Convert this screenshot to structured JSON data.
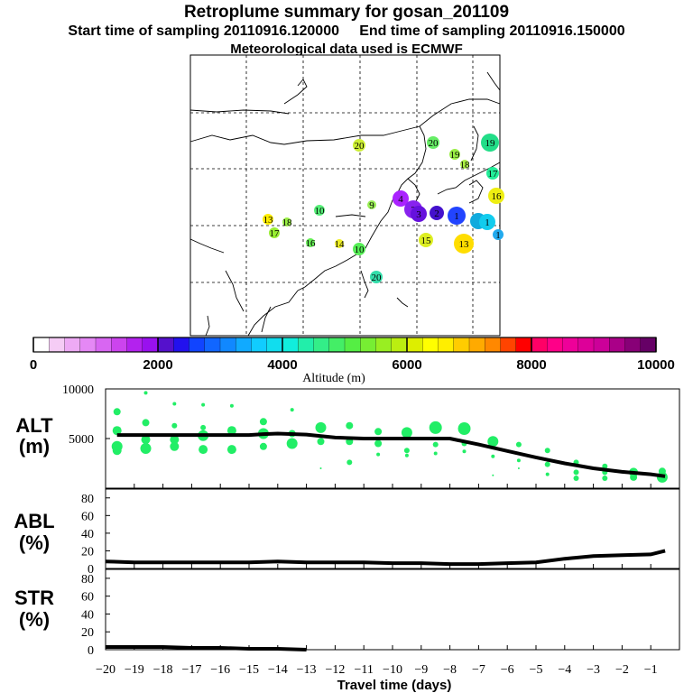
{
  "header": {
    "title": "Retroplume summary for gosan_201109",
    "start": "Start time of sampling 20110916.120000",
    "end": "End time of sampling 20110916.150000",
    "met": "Meteorological data used is ECMWF"
  },
  "map": {
    "points": [
      {
        "label": "20",
        "color": "#ccee33",
        "r": 7
      },
      {
        "label": "20",
        "color": "#66ee66",
        "r": 7
      },
      {
        "label": "19",
        "color": "#99ee44",
        "r": 6
      },
      {
        "label": "19",
        "color": "#22dd88",
        "r": 10
      },
      {
        "label": "18",
        "color": "#aaee44",
        "r": 5
      },
      {
        "label": "17",
        "color": "#22ee99",
        "r": 7
      },
      {
        "label": "16",
        "color": "#eeee11",
        "r": 9
      },
      {
        "label": "13",
        "color": "#ffee00",
        "r": 6
      },
      {
        "label": "18",
        "color": "#99ee44",
        "r": 5
      },
      {
        "label": "17",
        "color": "#99ee33",
        "r": 6
      },
      {
        "label": "10",
        "color": "#55ee77",
        "r": 6
      },
      {
        "label": "9",
        "color": "#99ee55",
        "r": 5
      },
      {
        "label": "16",
        "color": "#66ee55",
        "r": 5
      },
      {
        "label": "14",
        "color": "#eeee22",
        "r": 5
      },
      {
        "label": "10",
        "color": "#55ee55",
        "r": 7
      },
      {
        "label": "15",
        "color": "#ddee22",
        "r": 8
      },
      {
        "label": "13",
        "color": "#ffdd00",
        "r": 11
      },
      {
        "label": "20",
        "color": "#33ddaa",
        "r": 7
      },
      {
        "label": "4",
        "color": "#aa22ff",
        "r": 9
      },
      {
        "label": "3",
        "color": "#8822ee",
        "r": 10
      },
      {
        "label": "3",
        "color": "#6611dd",
        "r": 9
      },
      {
        "label": "2",
        "color": "#4411cc",
        "r": 8
      },
      {
        "label": "1",
        "color": "#2244ff",
        "r": 10
      },
      {
        "label": "",
        "color": "#11aadd",
        "r": 9
      },
      {
        "label": "1",
        "color": "#11ccee",
        "r": 9
      },
      {
        "label": "1",
        "color": "#22aaee",
        "r": 6
      }
    ]
  },
  "colorbar": {
    "colors": [
      "#ffffff",
      "#f5ccf5",
      "#eeaaf5",
      "#e588f5",
      "#d866f2",
      "#cc44ee",
      "#b322ee",
      "#9911ee",
      "#5511cc",
      "#2211ee",
      "#1144ff",
      "#1166ff",
      "#1188ff",
      "#11aaff",
      "#11ccff",
      "#11ddee",
      "#11eedd",
      "#22eeaa",
      "#33ee88",
      "#44ee66",
      "#55ee44",
      "#77ee33",
      "#99ee22",
      "#bbee11",
      "#ddee00",
      "#ffff00",
      "#ffee00",
      "#ffcc00",
      "#ffaa00",
      "#ff8800",
      "#ff4400",
      "#ff0000",
      "#ff0066",
      "#ff0088",
      "#ee0099",
      "#dd0099",
      "#cc0099",
      "#aa0088",
      "#880077",
      "#660066"
    ],
    "tick_labels": [
      "0",
      "2000",
      "4000",
      "6000",
      "8000",
      "10000"
    ],
    "title": "Altitude (m)"
  },
  "chart_data": [
    {
      "type": "line",
      "title": "ALT",
      "ylabel": "ALT (m)",
      "panel_label": "ALT",
      "unit_label": "(m)",
      "xlim": [
        -20,
        0
      ],
      "ylim": [
        0,
        10000
      ],
      "y_tick_labels": [
        "5000",
        "10000"
      ],
      "x": [
        -19.6,
        -18,
        -17,
        -16,
        -15,
        -14.5,
        -14,
        -13,
        -12,
        -11,
        -10,
        -9,
        -8,
        -7,
        -6,
        -5,
        -4,
        -3,
        -2,
        -1,
        -0.5
      ],
      "values": [
        5350,
        5350,
        5350,
        5350,
        5350,
        5450,
        5500,
        5400,
        5100,
        5000,
        5000,
        5000,
        5000,
        4400,
        3750,
        3100,
        2500,
        2000,
        1650,
        1400,
        1200
      ],
      "scatter": [
        {
          "x": -19.6,
          "y": 7700,
          "s": 4
        },
        {
          "x": -19.6,
          "y": 5800,
          "s": 5
        },
        {
          "x": -19.6,
          "y": 4200,
          "s": 6
        },
        {
          "x": -19.6,
          "y": 3800,
          "s": 5
        },
        {
          "x": -18.6,
          "y": 9600,
          "s": 2
        },
        {
          "x": -18.6,
          "y": 6600,
          "s": 4
        },
        {
          "x": -18.6,
          "y": 4900,
          "s": 5
        },
        {
          "x": -18.6,
          "y": 4000,
          "s": 6
        },
        {
          "x": -17.6,
          "y": 8500,
          "s": 2
        },
        {
          "x": -17.6,
          "y": 6300,
          "s": 3
        },
        {
          "x": -17.6,
          "y": 4900,
          "s": 5
        },
        {
          "x": -17.6,
          "y": 4200,
          "s": 5
        },
        {
          "x": -16.6,
          "y": 8400,
          "s": 2
        },
        {
          "x": -16.6,
          "y": 6100,
          "s": 3
        },
        {
          "x": -16.6,
          "y": 5300,
          "s": 6
        },
        {
          "x": -16.6,
          "y": 3900,
          "s": 5
        },
        {
          "x": -15.6,
          "y": 8300,
          "s": 2
        },
        {
          "x": -15.6,
          "y": 5800,
          "s": 5
        },
        {
          "x": -15.6,
          "y": 3900,
          "s": 5
        },
        {
          "x": -14.5,
          "y": 6700,
          "s": 4
        },
        {
          "x": -14.5,
          "y": 5500,
          "s": 6
        },
        {
          "x": -14.5,
          "y": 4200,
          "s": 4
        },
        {
          "x": -13.5,
          "y": 7900,
          "s": 2
        },
        {
          "x": -13.5,
          "y": 5500,
          "s": 4
        },
        {
          "x": -13.5,
          "y": 4500,
          "s": 6
        },
        {
          "x": -12.5,
          "y": 6100,
          "s": 6
        },
        {
          "x": -12.5,
          "y": 4700,
          "s": 4
        },
        {
          "x": -12.5,
          "y": 2000,
          "s": 1
        },
        {
          "x": -11.5,
          "y": 6300,
          "s": 4
        },
        {
          "x": -11.5,
          "y": 4700,
          "s": 4
        },
        {
          "x": -11.5,
          "y": 2600,
          "s": 3
        },
        {
          "x": -10.5,
          "y": 5700,
          "s": 4
        },
        {
          "x": -10.5,
          "y": 4500,
          "s": 4
        },
        {
          "x": -10.5,
          "y": 3400,
          "s": 2
        },
        {
          "x": -9.5,
          "y": 5600,
          "s": 6
        },
        {
          "x": -9.5,
          "y": 3800,
          "s": 3
        },
        {
          "x": -9.5,
          "y": 3300,
          "s": 2
        },
        {
          "x": -8.5,
          "y": 6100,
          "s": 7
        },
        {
          "x": -8.5,
          "y": 4400,
          "s": 3
        },
        {
          "x": -8.5,
          "y": 3500,
          "s": 2
        },
        {
          "x": -7.5,
          "y": 6000,
          "s": 7
        },
        {
          "x": -7.5,
          "y": 4500,
          "s": 3
        },
        {
          "x": -7.5,
          "y": 3700,
          "s": 2
        },
        {
          "x": -6.5,
          "y": 4700,
          "s": 6
        },
        {
          "x": -6.5,
          "y": 3200,
          "s": 2
        },
        {
          "x": -6.5,
          "y": 1300,
          "s": 1
        },
        {
          "x": -5.6,
          "y": 4400,
          "s": 3
        },
        {
          "x": -5.6,
          "y": 2800,
          "s": 2
        },
        {
          "x": -5.6,
          "y": 2000,
          "s": 1
        },
        {
          "x": -4.6,
          "y": 3800,
          "s": 3
        },
        {
          "x": -4.6,
          "y": 2400,
          "s": 3
        },
        {
          "x": -4.6,
          "y": 1400,
          "s": 2
        },
        {
          "x": -3.6,
          "y": 2600,
          "s": 3
        },
        {
          "x": -3.6,
          "y": 1600,
          "s": 3
        },
        {
          "x": -3.6,
          "y": 1000,
          "s": 3
        },
        {
          "x": -2.6,
          "y": 2200,
          "s": 3
        },
        {
          "x": -2.6,
          "y": 1600,
          "s": 3
        },
        {
          "x": -2.6,
          "y": 1000,
          "s": 3
        },
        {
          "x": -1.6,
          "y": 1600,
          "s": 5
        },
        {
          "x": -1.6,
          "y": 1100,
          "s": 4
        },
        {
          "x": -0.6,
          "y": 1700,
          "s": 4
        },
        {
          "x": -0.6,
          "y": 1100,
          "s": 6
        }
      ]
    },
    {
      "type": "line",
      "title": "ABL",
      "ylabel": "ABL (%)",
      "panel_label": "ABL",
      "unit_label": "(%)",
      "xlim": [
        -20,
        0
      ],
      "ylim": [
        0,
        90
      ],
      "y_tick_labels": [
        "0",
        "20",
        "40",
        "60",
        "80"
      ],
      "x": [
        -20,
        -19,
        -18,
        -17,
        -16,
        -15,
        -14,
        -13,
        -12,
        -11,
        -10,
        -9,
        -8,
        -7,
        -6,
        -5,
        -4,
        -3,
        -2,
        -1,
        -0.5
      ],
      "values": [
        8,
        7,
        7,
        7,
        7,
        7,
        8,
        7,
        7,
        7,
        6,
        6,
        5,
        5,
        6,
        7,
        11,
        14,
        15,
        16,
        20
      ]
    },
    {
      "type": "line",
      "title": "STR",
      "ylabel": "STR (%)",
      "panel_label": "STR",
      "unit_label": "(%)",
      "xlim": [
        -20,
        0
      ],
      "ylim": [
        0,
        90
      ],
      "y_tick_labels": [
        "0",
        "20",
        "40",
        "60",
        "80"
      ],
      "x": [
        -20,
        -19,
        -18,
        -17,
        -16,
        -15,
        -14,
        -13
      ],
      "values": [
        3,
        3,
        3,
        2,
        2,
        1,
        1,
        0
      ],
      "xlabel": "Travel time (days)",
      "x_tick_labels": [
        "−20",
        "−19",
        "−18",
        "−17",
        "−16",
        "−15",
        "−14",
        "−13",
        "−12",
        "−11",
        "−10",
        "−9",
        "−8",
        "−7",
        "−6",
        "−5",
        "−4",
        "−3",
        "−2",
        "−1"
      ]
    }
  ]
}
